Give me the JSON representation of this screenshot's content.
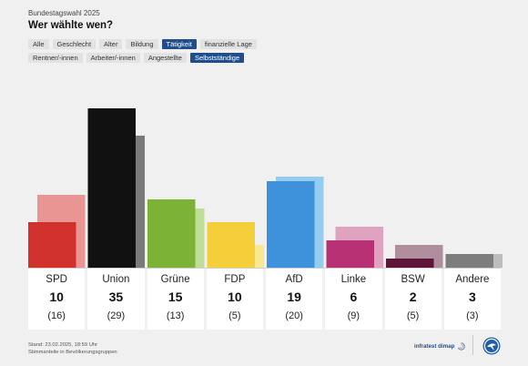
{
  "header": {
    "overline": "Bundestagswahl 2025",
    "title": "Wer wählte wen?"
  },
  "filters": {
    "row1": [
      {
        "label": "Alle",
        "active": false
      },
      {
        "label": "Geschlecht",
        "active": false
      },
      {
        "label": "Alter",
        "active": false
      },
      {
        "label": "Bildung",
        "active": false
      },
      {
        "label": "Tätigkeit",
        "active": true
      },
      {
        "label": "finanzielle Lage",
        "active": false
      }
    ],
    "row2": [
      {
        "label": "Rentner/-innen",
        "active": false
      },
      {
        "label": "Arbeiter/-innen",
        "active": false
      },
      {
        "label": "Angestellte",
        "active": false
      },
      {
        "label": "Selbstständige",
        "active": true
      }
    ]
  },
  "chart_data": {
    "type": "bar",
    "categories": [
      "SPD",
      "Union",
      "Grüne",
      "FDP",
      "AfD",
      "Linke",
      "BSW",
      "Andere"
    ],
    "series": [
      {
        "values": [
          10,
          35,
          15,
          10,
          19,
          6,
          2,
          3
        ]
      },
      {
        "values": [
          16,
          29,
          13,
          5,
          20,
          9,
          5,
          3
        ]
      }
    ],
    "colors": [
      "#d0312d",
      "#111111",
      "#7cb236",
      "#f4cf3a",
      "#3d92db",
      "#b83074",
      "#5e1538",
      "#7d7d7d"
    ],
    "prev_colors": [
      "#e89593",
      "#7a7a7a",
      "#bedd97",
      "#fbe78f",
      "#94cbef",
      "#dfa3c0",
      "#b08e9e",
      "#bdbdbd"
    ],
    "ylim": [
      0,
      35
    ]
  },
  "cards": [
    {
      "party": "SPD",
      "value": "10",
      "previous": "(16)"
    },
    {
      "party": "Union",
      "value": "35",
      "previous": "(29)"
    },
    {
      "party": "Grüne",
      "value": "15",
      "previous": "(13)"
    },
    {
      "party": "FDP",
      "value": "10",
      "previous": "(5)"
    },
    {
      "party": "AfD",
      "value": "19",
      "previous": "(20)"
    },
    {
      "party": "Linke",
      "value": "6",
      "previous": "(9)"
    },
    {
      "party": "BSW",
      "value": "2",
      "previous": "(5)"
    },
    {
      "party": "Andere",
      "value": "3",
      "previous": "(3)"
    }
  ],
  "footer": {
    "line1": "Stand: 23.02.2025, 18:59 Uhr",
    "line2": "Stimmanteile in Bevölkerungsgruppen",
    "brand": "infratest dimap"
  }
}
